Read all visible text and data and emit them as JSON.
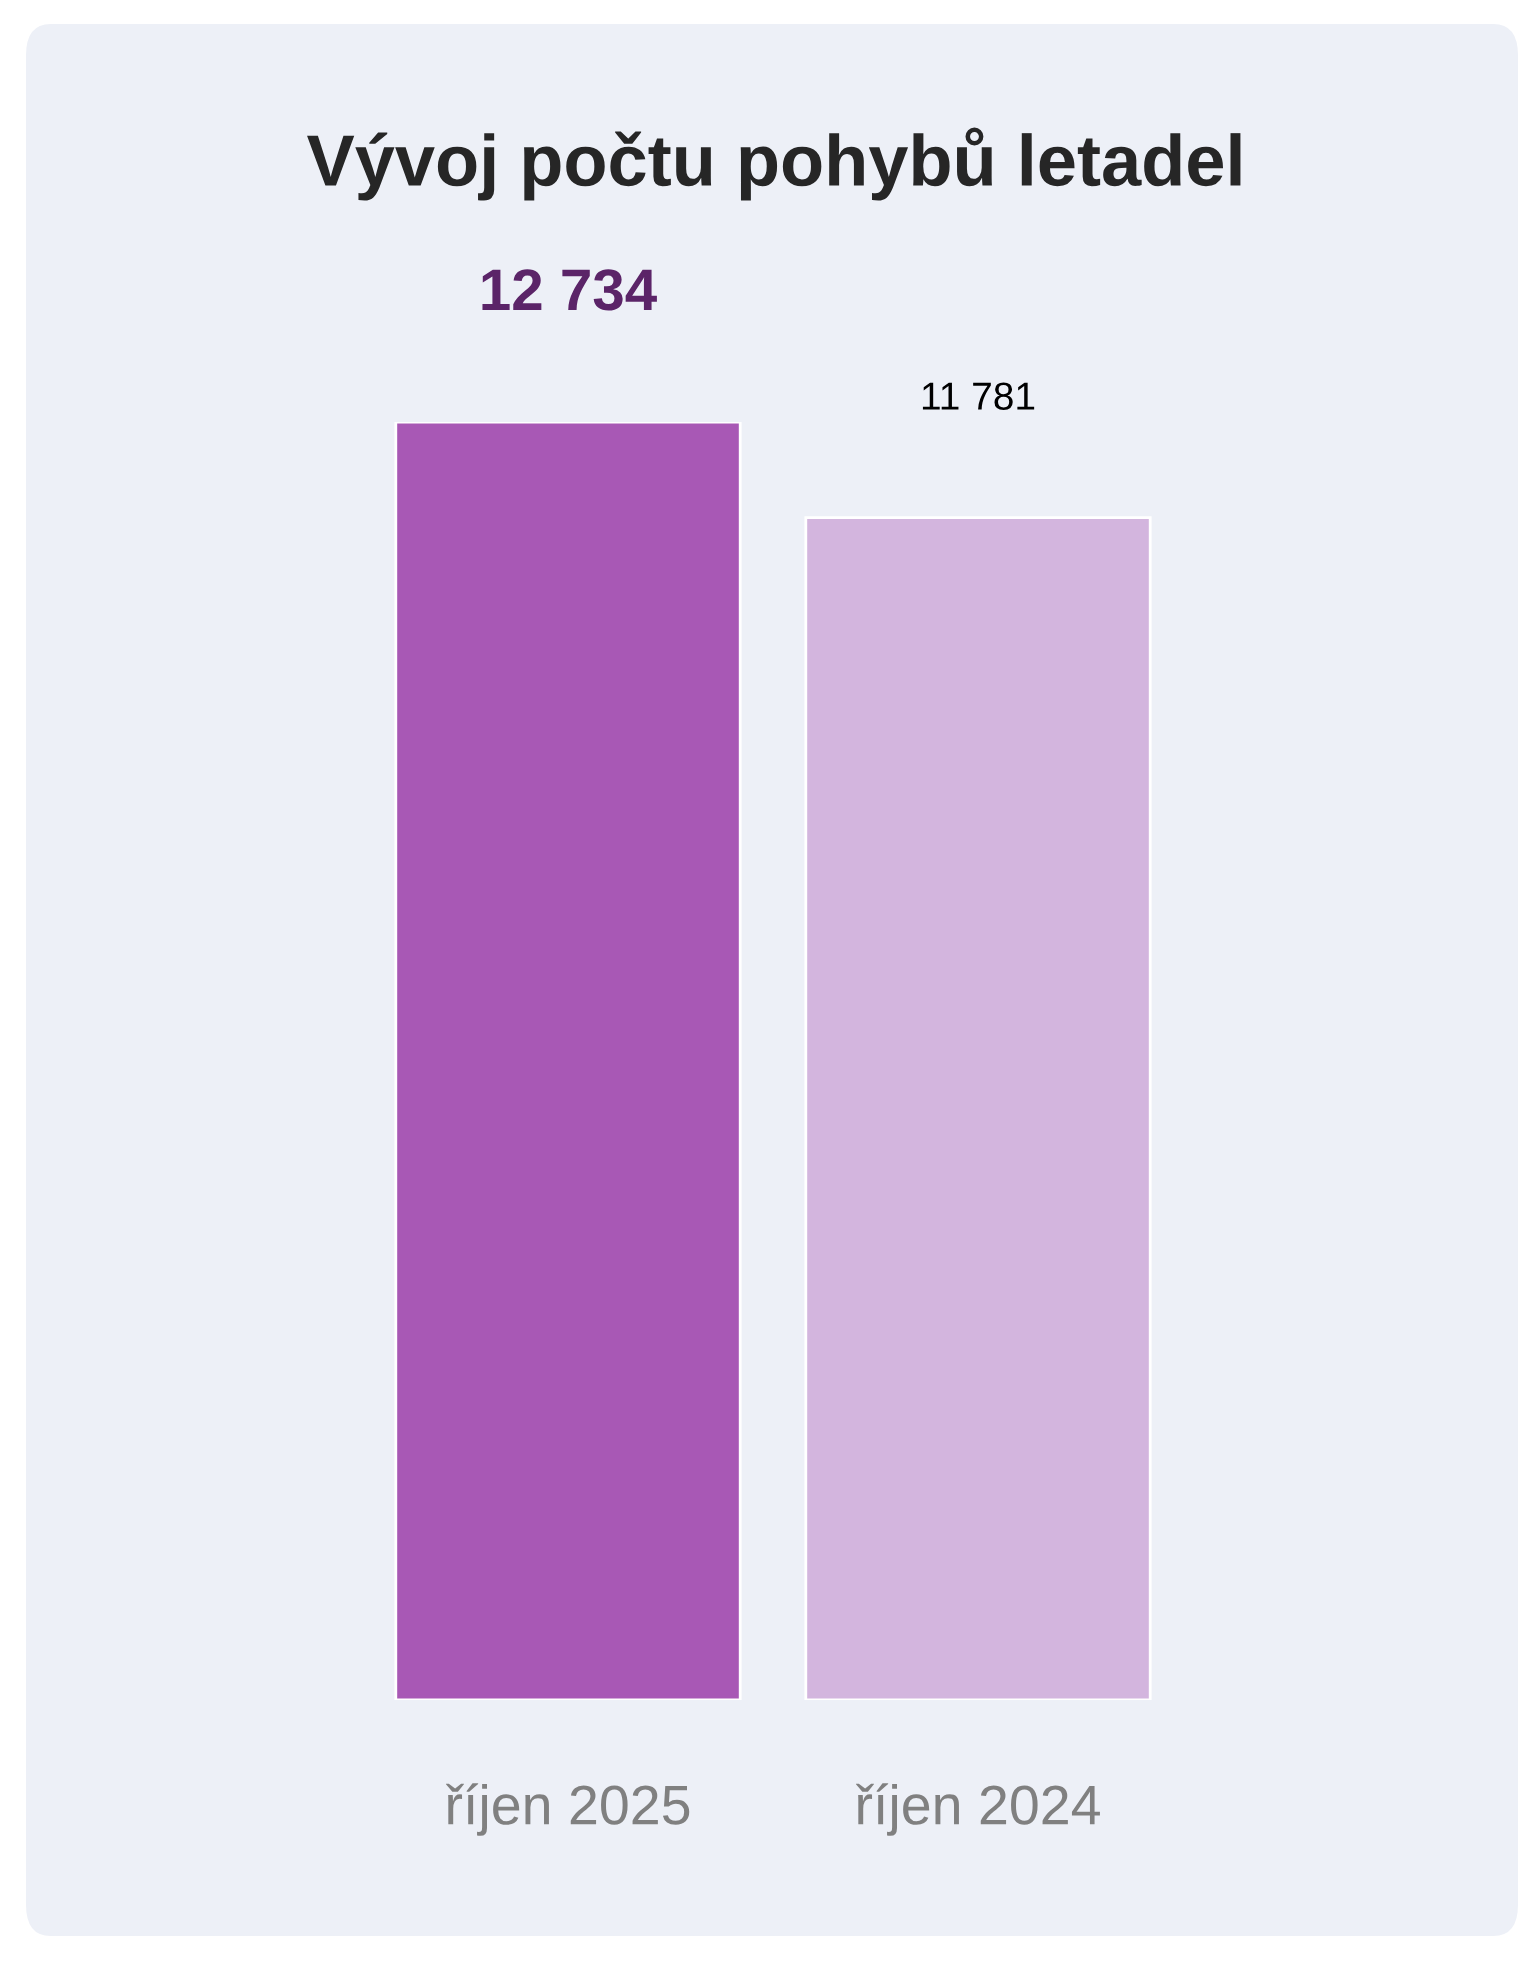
{
  "chart_data": {
    "type": "bar",
    "title": "Vývoj počtu pohybů letadel",
    "categories": [
      "říjen 2025",
      "říjen 2024"
    ],
    "values": [
      12734,
      11781
    ],
    "value_labels": [
      "12 734",
      "11 781"
    ],
    "colors": [
      "#a858b5",
      "#d3b5de"
    ]
  }
}
